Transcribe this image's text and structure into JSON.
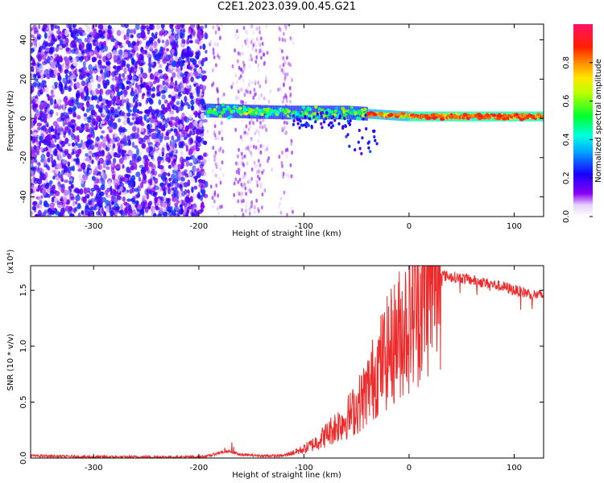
{
  "page_title": "C2E1.2023.039.00.45.G21",
  "colors": {
    "snr_line": "#ee2b2b",
    "axis": "#000000",
    "background": "#ffffff"
  },
  "chart_data": [
    {
      "type": "heatmap",
      "title": "C2E1.2023.039.00.45.G21",
      "xlabel": "Height of straight line (km)",
      "ylabel": "Frequency (Hz)",
      "xlim": [
        -360,
        128
      ],
      "ylim": [
        -50,
        48
      ],
      "x_ticks": [
        -300,
        -200,
        -100,
        0,
        100
      ],
      "y_ticks": [
        -40,
        -20,
        0,
        20,
        40
      ],
      "grid": false,
      "colorbar": {
        "label": "Normalized spectral amplitude",
        "range": [
          0,
          1
        ],
        "ticks": [
          0.0,
          0.2,
          0.4,
          0.6,
          0.8
        ],
        "colormap": "rainbow (white-purple-blue-cyan-green-yellow-orange-red-pink)"
      },
      "features": [
        {
          "name": "noise region",
          "x_range": [
            -360,
            -193
          ],
          "freq_range": [
            -50,
            48
          ],
          "amplitude": "low (0.05-0.25)"
        },
        {
          "name": "signal band",
          "x_range": [
            -193,
            128
          ],
          "center_freq": [
            4,
            3,
            3,
            1,
            1
          ],
          "center_x": [
            -190,
            -120,
            -60,
            0,
            128
          ],
          "peak_amplitude": 0.95
        }
      ]
    },
    {
      "type": "line",
      "title": "",
      "xlabel": "Height of straight line (km)",
      "ylabel": "SNR (10 * v/v)",
      "y_multiplier": "(x10⁴)",
      "xlim": [
        -360,
        128
      ],
      "ylim": [
        0,
        1.72
      ],
      "x_ticks": [
        -300,
        -200,
        -100,
        0,
        100
      ],
      "y_ticks": [
        0.0,
        0.5,
        1.0,
        1.5
      ],
      "grid": false,
      "series": [
        {
          "x": [
            -360,
            -300,
            -250,
            -200,
            -190,
            -180,
            -170,
            -160,
            -140,
            -120,
            -110,
            -100,
            -90,
            -80,
            -70,
            -60,
            -50,
            -40,
            -30,
            -20,
            -10,
            0,
            10,
            20,
            30,
            40,
            50,
            60,
            70,
            80,
            90,
            100,
            110,
            120,
            128
          ],
          "y": [
            0.02,
            0.01,
            0.01,
            0.01,
            0.02,
            0.05,
            0.06,
            0.03,
            0.02,
            0.02,
            0.05,
            0.08,
            0.13,
            0.2,
            0.28,
            0.35,
            0.45,
            0.6,
            0.8,
            0.95,
            1.1,
            1.25,
            1.4,
            1.58,
            1.64,
            1.62,
            1.61,
            1.59,
            1.57,
            1.55,
            1.53,
            1.5,
            1.48,
            1.46,
            1.45
          ]
        }
      ]
    }
  ]
}
